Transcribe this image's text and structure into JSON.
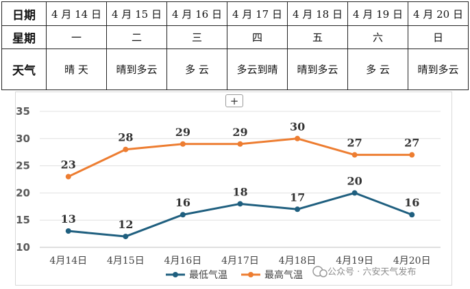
{
  "table": {
    "rows": [
      {
        "head": "日期",
        "cells": [
          "4 月 14 日",
          "4 月 15 日",
          "4 月 16 日",
          "4 月 17 日",
          "4 月 18 日",
          "4 月 19 日",
          "4 月 20 日"
        ]
      },
      {
        "head": "星期",
        "cells": [
          "一",
          "二",
          "三",
          "四",
          "五",
          "六",
          "日"
        ]
      },
      {
        "head": "天气",
        "cells": [
          "晴 天",
          "晴到多云",
          "多 云",
          "多云到晴",
          "晴到多云",
          "多 云",
          "晴到多云"
        ]
      }
    ]
  },
  "chart_data": {
    "type": "line",
    "categories": [
      "4月14日",
      "4月15日",
      "4月16日",
      "4月17日",
      "4月18日",
      "4月19日",
      "4月20日"
    ],
    "series": [
      {
        "name": "最低气温",
        "values": [
          13,
          12,
          16,
          18,
          17,
          20,
          16
        ],
        "color": "#1f5f7f"
      },
      {
        "name": "最高气温",
        "values": [
          23,
          28,
          29,
          29,
          30,
          27,
          27
        ],
        "color": "#ed7d31"
      }
    ],
    "y_ticks": [
      "10",
      "15",
      "20",
      "25",
      "30",
      "35"
    ],
    "ylim": [
      10,
      35
    ],
    "grid": true,
    "legend_position": "bottom"
  },
  "plus_button": "+",
  "watermark": "公众号 · 六安天气发布",
  "watermark_icon": "wechat-icon"
}
